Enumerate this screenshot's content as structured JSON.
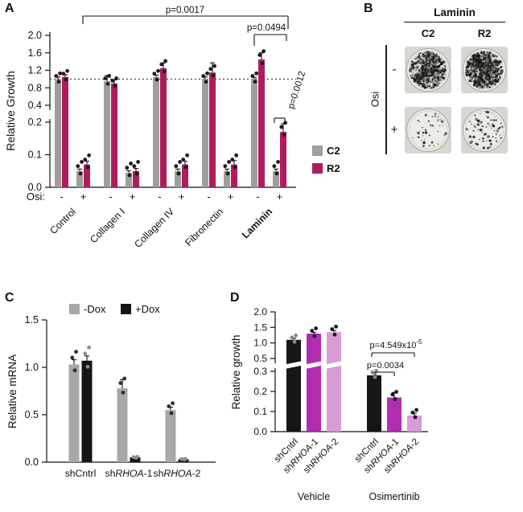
{
  "panel_labels": {
    "A": "A",
    "B": "B",
    "C": "C",
    "D": "D"
  },
  "panelB": {
    "title": "Laminin",
    "col_headers": [
      "C2",
      "R2"
    ],
    "row_labels": [
      "-",
      "+"
    ],
    "side_label": "Osi",
    "wells": [
      {
        "col": "C2",
        "row": "-",
        "density": "dense"
      },
      {
        "col": "R2",
        "row": "-",
        "density": "dense2"
      },
      {
        "col": "C2",
        "row": "+",
        "density": "sparse"
      },
      {
        "col": "R2",
        "row": "+",
        "density": "medium"
      }
    ]
  },
  "chart_data": [
    {
      "id": "A",
      "type": "bar",
      "ylabel": "Relative Growth",
      "y_axis_break": {
        "bottom_range": [
          0,
          0.2
        ],
        "bottom_ticks": [
          "0.0",
          "0.1",
          "0.2"
        ],
        "top_range": [
          0.4,
          2.0
        ],
        "top_ticks": [
          "0.4",
          "0.8",
          "1.2",
          "1.6",
          "2.0"
        ]
      },
      "reference_line": 1.0,
      "x_prefix_label": "Osi:",
      "conditions": [
        "-",
        "+"
      ],
      "categories": [
        "Control",
        "Collagen I",
        "Collagen IV",
        "Fibronectin",
        "Laminin"
      ],
      "bold_categories": [
        "Laminin"
      ],
      "series": [
        {
          "name": "C2",
          "color": "#9e9e9e",
          "minus": [
            1.0,
            0.95,
            1.05,
            1.0,
            1.0
          ],
          "minus_err": [
            0.05,
            0.13,
            0.04,
            0.05,
            0.04
          ],
          "plus": [
            0.05,
            0.045,
            0.05,
            0.05,
            0.05
          ],
          "plus_err": [
            0.006,
            0.006,
            0.006,
            0.006,
            0.006
          ]
        },
        {
          "name": "R2",
          "color": "#b01b5e",
          "minus": [
            1.05,
            0.9,
            1.25,
            1.15,
            1.45
          ],
          "minus_err": [
            0.05,
            0.08,
            0.12,
            0.22,
            0.15
          ],
          "plus": [
            0.07,
            0.05,
            0.07,
            0.07,
            0.17
          ],
          "plus_err": [
            0.01,
            0.008,
            0.01,
            0.012,
            0.025
          ]
        }
      ],
      "significance": [
        {
          "text": "p=0.0017"
        },
        {
          "text": "p=0.0494"
        },
        {
          "text": "p=0.0012"
        }
      ]
    },
    {
      "id": "C",
      "type": "bar",
      "ylabel": "Relative mRNA",
      "ylim": [
        0,
        1.5
      ],
      "yticks": [
        "0.0",
        "0.5",
        "1.0",
        "1.5"
      ],
      "categories": [
        {
          "pre": "shCntrl"
        },
        {
          "pre": "sh",
          "italic": "RHOA",
          "post": "-1"
        },
        {
          "pre": "sh",
          "italic": "RHOA",
          "post": "-2"
        }
      ],
      "series": [
        {
          "name": "-Dox",
          "color": "#a8a8a8",
          "values": [
            1.03,
            0.78,
            0.55
          ],
          "err": [
            0.05,
            0.09,
            0.03
          ]
        },
        {
          "name": "+Dox",
          "color": "#161616",
          "values": [
            1.07,
            0.05,
            0.03
          ],
          "err": [
            0.05,
            0.01,
            0.006
          ]
        }
      ]
    },
    {
      "id": "D",
      "type": "bar",
      "ylabel": "Relative growth",
      "y_axis_break": {
        "bottom_range": [
          0,
          0.3
        ],
        "bottom_ticks": [
          "0.0",
          "0.1",
          "0.2",
          "0.3"
        ],
        "top_range": [
          0.5,
          2.0
        ],
        "top_ticks": [
          "0.5",
          "1.0",
          "1.5",
          "2.0"
        ]
      },
      "categories": [
        {
          "pre": "shCntrl"
        },
        {
          "pre": "sh",
          "italic": "RHOA",
          "post": "-1"
        },
        {
          "pre": "sh",
          "italic": "RHOA",
          "post": "-2"
        }
      ],
      "bar_colors": [
        "#161616",
        "#b12cb0",
        "#d89bd4"
      ],
      "groups": [
        {
          "name": "Vehicle",
          "values": [
            1.1,
            1.3,
            1.35
          ],
          "err": [
            0.05,
            0.04,
            0.05
          ]
        },
        {
          "name": "Osimertinib",
          "values": [
            0.28,
            0.17,
            0.08
          ],
          "err": [
            0.015,
            0.025,
            0.012
          ]
        }
      ],
      "significance": [
        {
          "text": "p=0.0034"
        },
        {
          "text_base": "p=4.549x10",
          "text_sup": "-5"
        }
      ]
    }
  ]
}
